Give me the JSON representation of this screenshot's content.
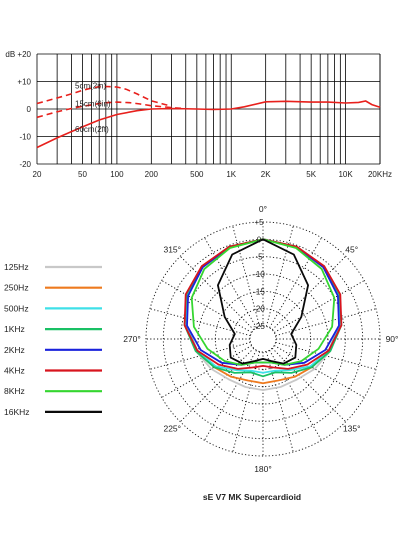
{
  "chart_data": [
    {
      "type": "line",
      "title": "",
      "xscale": "log",
      "xlim": [
        20,
        20000
      ],
      "ylim": [
        -20,
        20
      ],
      "x_ticks": [
        {
          "v": 20,
          "t": "20"
        },
        {
          "v": 50,
          "t": "50"
        },
        {
          "v": 100,
          "t": "100"
        },
        {
          "v": 200,
          "t": "200"
        },
        {
          "v": 500,
          "t": "500"
        },
        {
          "v": 1000,
          "t": "1K"
        },
        {
          "v": 2000,
          "t": "2K"
        },
        {
          "v": 5000,
          "t": "5K"
        },
        {
          "v": 10000,
          "t": "10K"
        },
        {
          "v": 20000,
          "t": "20KHz"
        }
      ],
      "y_ticks": [
        {
          "v": 20,
          "t": "dB +20"
        },
        {
          "v": 10,
          "t": "+10"
        },
        {
          "v": 0,
          "t": "0"
        },
        {
          "v": -10,
          "t": "-10"
        },
        {
          "v": -20,
          "t": "-20"
        }
      ],
      "grid": true,
      "color": "#e8201c",
      "series": [
        {
          "name": "5cm(2in)",
          "style": "dashed",
          "x": [
            20,
            30,
            40,
            50,
            60,
            70,
            80,
            100,
            120,
            150,
            200,
            300
          ],
          "y": [
            2,
            4,
            5.5,
            6.8,
            7.6,
            8.1,
            8.2,
            8,
            7.2,
            5.5,
            3,
            1
          ]
        },
        {
          "name": "15cm(6in)",
          "style": "dashed",
          "x": [
            20,
            30,
            40,
            50,
            60,
            70,
            80,
            100,
            130,
            160,
            200,
            300,
            400
          ],
          "y": [
            -3,
            -1,
            0.2,
            1,
            1.5,
            2,
            2.3,
            2.5,
            2.3,
            1.8,
            1.2,
            0.5,
            0.1
          ]
        },
        {
          "name": "60cm(2ft)",
          "style": "solid",
          "x": [
            20,
            30,
            40,
            50,
            70,
            100,
            150,
            200,
            300,
            500,
            700,
            1000,
            1300,
            2000,
            3000,
            5000,
            7000,
            10000,
            13000,
            15000,
            17000,
            20000
          ],
          "y": [
            -14,
            -10.5,
            -8.2,
            -6.5,
            -4,
            -2,
            -0.6,
            0,
            0.2,
            0,
            -0.2,
            0,
            0.8,
            2.6,
            2.8,
            2.5,
            2.5,
            2.2,
            2.4,
            2.9,
            1.6,
            0.6
          ]
        }
      ]
    },
    {
      "type": "polar",
      "title": "sE V7 MK Supercardioid",
      "rlim": [
        -25,
        5
      ],
      "ring_labels": [
        "+5",
        "0",
        "-5",
        "-10",
        "-15",
        "-20",
        "-25"
      ],
      "angle_labels": [
        "0°",
        "45°",
        "90°",
        "135°",
        "180°",
        "225°",
        "270°",
        "315°"
      ],
      "angles_deg": [
        0,
        20,
        40,
        60,
        80,
        100,
        120,
        140,
        160,
        180
      ],
      "symmetric": true,
      "series": [
        {
          "name": "125Hz",
          "color": "#c8c8c8",
          "r": [
            0,
            -0.5,
            -1.6,
            -3.5,
            -6,
            -9,
            -11.5,
            -13.5,
            -14,
            -14
          ]
        },
        {
          "name": "250Hz",
          "color": "#ee7a1e",
          "r": [
            0,
            -0.5,
            -1.7,
            -3.6,
            -6.3,
            -9.5,
            -12.5,
            -14.5,
            -16,
            -16
          ]
        },
        {
          "name": "500Hz",
          "color": "#3fe0e8",
          "r": [
            0,
            -0.5,
            -1.6,
            -3.5,
            -6.2,
            -9.5,
            -13,
            -17,
            -19,
            -19
          ]
        },
        {
          "name": "1KHz",
          "color": "#19c064",
          "r": [
            0,
            -0.4,
            -1.4,
            -3.2,
            -5.8,
            -9,
            -12.5,
            -16,
            -18.5,
            -18
          ]
        },
        {
          "name": "2KHz",
          "color": "#1a22dc",
          "r": [
            0,
            -0.5,
            -1.7,
            -3.8,
            -6.5,
            -10.5,
            -15,
            -19,
            -21.5,
            -22
          ]
        },
        {
          "name": "4KHz",
          "color": "#d8141e",
          "r": [
            0,
            -0.4,
            -1.3,
            -3,
            -5.8,
            -9.5,
            -14,
            -17.5,
            -20,
            -21
          ]
        },
        {
          "name": "8KHz",
          "color": "#35d630",
          "r": [
            0,
            -0.8,
            -2.4,
            -5,
            -8.5,
            -12.5,
            -16,
            -19,
            -21.5,
            -22
          ]
        },
        {
          "name": "16KHz",
          "color": "#0a0a0a",
          "r": [
            0,
            -2.8,
            -8.5,
            -16,
            -20.5,
            -19,
            -18,
            -19.5,
            -22,
            -23
          ]
        }
      ]
    }
  ]
}
